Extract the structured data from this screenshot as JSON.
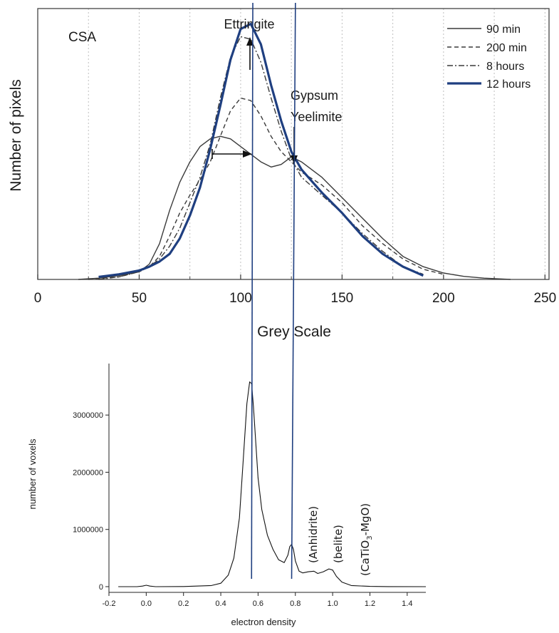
{
  "chart_data": [
    {
      "type": "line",
      "title": "",
      "xlabel": "Grey Scale",
      "ylabel": "Number of pixels",
      "xlim": [
        0,
        252
      ],
      "ylim": [
        0,
        1.06
      ],
      "x_ticks": [
        0,
        50,
        100,
        150,
        200,
        250
      ],
      "x_tick_labels": [
        "0",
        "50",
        "100",
        "150",
        "200",
        "250"
      ],
      "y_ticks_shown": false,
      "grid": "vertical dotted",
      "legend_position": "top-right",
      "annotations": {
        "corner_label": "CSA",
        "ettringite": "Ettringite",
        "gypsum": "Gypsum",
        "yeelimite": "Yeelimite"
      },
      "series": [
        {
          "name": "90 min",
          "style": "solid",
          "color": "#3a3a3a",
          "x": [
            20,
            30,
            40,
            50,
            55,
            60,
            65,
            70,
            75,
            80,
            85,
            90,
            95,
            100,
            105,
            110,
            115,
            120,
            125,
            130,
            135,
            140,
            145,
            150,
            160,
            170,
            180,
            190,
            200,
            210,
            220,
            233
          ],
          "y": [
            0,
            0.005,
            0.015,
            0.03,
            0.06,
            0.14,
            0.27,
            0.38,
            0.46,
            0.52,
            0.55,
            0.56,
            0.55,
            0.52,
            0.49,
            0.46,
            0.44,
            0.45,
            0.48,
            0.46,
            0.43,
            0.4,
            0.36,
            0.32,
            0.24,
            0.16,
            0.09,
            0.05,
            0.025,
            0.012,
            0.005,
            0
          ]
        },
        {
          "name": "200 min",
          "style": "dashed",
          "color": "#3a3a3a",
          "x": [
            25,
            40,
            50,
            55,
            60,
            65,
            70,
            75,
            80,
            85,
            90,
            95,
            100,
            105,
            110,
            115,
            120,
            125,
            130,
            140,
            150,
            160,
            170,
            180,
            190,
            200
          ],
          "y": [
            0,
            0.01,
            0.03,
            0.05,
            0.09,
            0.17,
            0.26,
            0.33,
            0.39,
            0.46,
            0.56,
            0.66,
            0.71,
            0.7,
            0.64,
            0.56,
            0.5,
            0.46,
            0.42,
            0.37,
            0.3,
            0.21,
            0.14,
            0.08,
            0.04,
            0.02
          ]
        },
        {
          "name": "8 hours",
          "style": "dash-dot",
          "color": "#3a3a3a",
          "x": [
            30,
            40,
            50,
            55,
            60,
            65,
            70,
            75,
            80,
            85,
            90,
            95,
            100,
            105,
            110,
            115,
            120,
            125,
            130,
            140,
            150,
            160,
            170,
            180,
            190
          ],
          "y": [
            0,
            0.01,
            0.03,
            0.05,
            0.08,
            0.13,
            0.2,
            0.3,
            0.4,
            0.53,
            0.71,
            0.87,
            0.95,
            0.94,
            0.85,
            0.71,
            0.58,
            0.47,
            0.4,
            0.33,
            0.26,
            0.18,
            0.11,
            0.05,
            0.02
          ]
        },
        {
          "name": "12 hours",
          "style": "solid-thick",
          "color": "#1f3f80",
          "x": [
            30,
            40,
            50,
            55,
            60,
            65,
            70,
            75,
            80,
            85,
            90,
            95,
            100,
            105,
            110,
            115,
            120,
            125,
            130,
            140,
            150,
            160,
            170,
            180,
            190
          ],
          "y": [
            0.01,
            0.02,
            0.035,
            0.05,
            0.07,
            0.1,
            0.16,
            0.25,
            0.36,
            0.51,
            0.68,
            0.86,
            0.98,
            1.0,
            0.92,
            0.76,
            0.62,
            0.5,
            0.43,
            0.34,
            0.26,
            0.17,
            0.1,
            0.05,
            0.015
          ]
        }
      ]
    },
    {
      "type": "line",
      "title": "",
      "xlabel": "electron density",
      "ylabel": "number of voxels",
      "xlim": [
        -0.2,
        1.5
      ],
      "ylim": [
        -100000,
        3900000
      ],
      "x_ticks": [
        -0.2,
        0,
        0.2,
        0.4,
        0.6,
        0.8,
        1,
        1.2,
        1.4
      ],
      "x_tick_labels": [
        "-0.2",
        "0.0",
        "0.2",
        "0.4",
        "0.6",
        "0.8",
        "1.0",
        "1.2",
        "1.4"
      ],
      "y_ticks": [
        0,
        1000000,
        2000000,
        3000000
      ],
      "y_tick_labels": [
        "0",
        "1000000",
        "2000000",
        "3000000"
      ],
      "grid": false,
      "annotations": {
        "anhydrite": "(Anhidrite)",
        "belite": "(belite)",
        "catio3_prefix": "(CaTiO",
        "catio3_sub": "3",
        "catio3_suffix": "-MgO)"
      },
      "series": [
        {
          "x": [
            -0.15,
            -0.05,
            -0.02,
            0.0,
            0.02,
            0.05,
            0.2,
            0.35,
            0.4,
            0.44,
            0.47,
            0.5,
            0.52,
            0.54,
            0.555,
            0.565,
            0.575,
            0.59,
            0.6,
            0.62,
            0.65,
            0.68,
            0.71,
            0.74,
            0.76,
            0.77,
            0.78,
            0.79,
            0.8,
            0.82,
            0.84,
            0.87,
            0.9,
            0.92,
            0.95,
            0.98,
            1.0,
            1.02,
            1.05,
            1.1,
            1.2,
            1.3,
            1.5
          ],
          "y": [
            0,
            0,
            10000,
            25000,
            10000,
            0,
            2000,
            20000,
            60000,
            200000,
            500000,
            1200000,
            2200000,
            3200000,
            3580000,
            3550000,
            3150000,
            2400000,
            1900000,
            1350000,
            900000,
            650000,
            470000,
            420000,
            550000,
            700000,
            740000,
            650000,
            450000,
            270000,
            240000,
            260000,
            270000,
            230000,
            260000,
            310000,
            290000,
            180000,
            80000,
            20000,
            5000,
            1000,
            0
          ]
        }
      ]
    }
  ],
  "overlay_lines": {
    "color": "#1f3f80",
    "lines": [
      {
        "top_grey_scale": 106,
        "bottom_electron_density": 0.565
      },
      {
        "top_grey_scale": 127,
        "bottom_electron_density": 0.78
      }
    ]
  }
}
